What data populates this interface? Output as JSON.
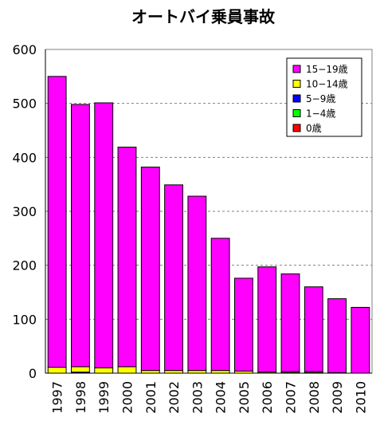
{
  "chart_data": {
    "type": "bar",
    "stacked": true,
    "title": "オートバイ乗員事故",
    "categories": [
      "1997",
      "1998",
      "1999",
      "2000",
      "2001",
      "2002",
      "2003",
      "2004",
      "2005",
      "2006",
      "2007",
      "2008",
      "2009",
      "2010"
    ],
    "series": [
      {
        "name": "0歳",
        "color": "#ff0000",
        "values": [
          0,
          0,
          0,
          0,
          0,
          0,
          0,
          0,
          0,
          0,
          0,
          0,
          0,
          0
        ]
      },
      {
        "name": "1−4歳",
        "color": "#00ff00",
        "values": [
          0,
          0,
          0,
          0,
          0,
          0,
          0,
          0,
          0,
          0,
          0,
          0,
          0,
          0
        ]
      },
      {
        "name": "5−9歳",
        "color": "#0000ff",
        "values": [
          0,
          2,
          0,
          0,
          0,
          0,
          0,
          0,
          0,
          0,
          1,
          1,
          0,
          0
        ]
      },
      {
        "name": "10−14歳",
        "color": "#ffff00",
        "values": [
          11,
          10,
          10,
          12,
          5,
          5,
          5,
          5,
          4,
          2,
          2,
          2,
          1,
          0
        ]
      },
      {
        "name": "15−19歳",
        "color": "#ff00ff",
        "values": [
          539,
          486,
          491,
          407,
          377,
          344,
          323,
          245,
          172,
          195,
          181,
          157,
          137,
          122
        ]
      }
    ],
    "ylim": [
      0,
      600
    ],
    "yticks": [
      0,
      100,
      200,
      300,
      400,
      500,
      600
    ],
    "grid": "horizontal-dashed",
    "legend_position": "top-right",
    "xlabel": "",
    "ylabel": ""
  }
}
